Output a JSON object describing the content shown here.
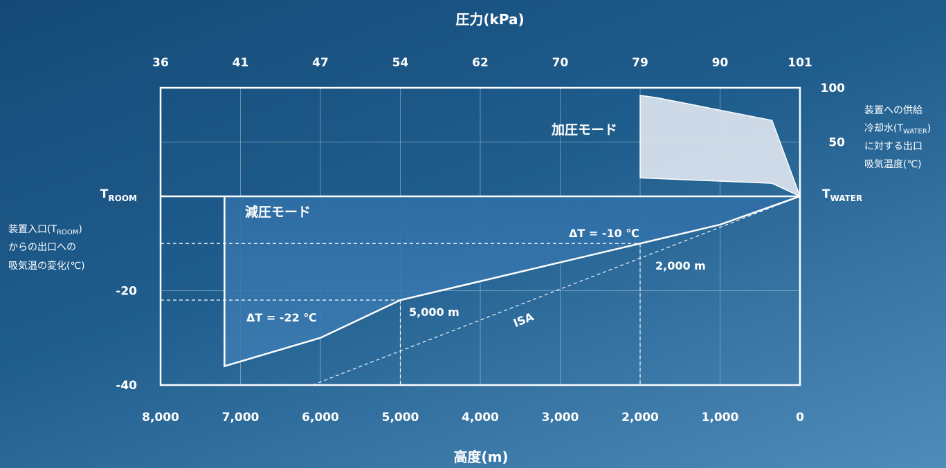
{
  "chart_data": {
    "type": "area",
    "title_top": "圧力(kPa)",
    "xlabel": "高度(m)",
    "top_axis_label": "圧力(kPa)",
    "x_reversed": true,
    "xlim": [
      0,
      8000
    ],
    "ylim": [
      -40,
      100
    ],
    "x_ticks": [
      {
        "value": 8000,
        "label": "8,000"
      },
      {
        "value": 7000,
        "label": "7,000"
      },
      {
        "value": 6000,
        "label": "6,000"
      },
      {
        "value": 5000,
        "label": "5,000"
      },
      {
        "value": 4000,
        "label": "4,000"
      },
      {
        "value": 3000,
        "label": "3,000"
      },
      {
        "value": 2000,
        "label": "2,000"
      },
      {
        "value": 1000,
        "label": "1,000"
      },
      {
        "value": 0,
        "label": "0"
      }
    ],
    "top_ticks": [
      {
        "value": 8000,
        "label": "36"
      },
      {
        "value": 7000,
        "label": "41"
      },
      {
        "value": 6000,
        "label": "47"
      },
      {
        "value": 5000,
        "label": "54"
      },
      {
        "value": 4000,
        "label": "62"
      },
      {
        "value": 3000,
        "label": "70"
      },
      {
        "value": 2000,
        "label": "79"
      },
      {
        "value": 1000,
        "label": "90"
      },
      {
        "value": 0,
        "label": "101"
      }
    ],
    "left_ticks": [
      {
        "value": 0,
        "label": "TROOM",
        "main": "T",
        "sub": "ROOM"
      },
      {
        "value": -20,
        "label": "-20"
      },
      {
        "value": -40,
        "label": "-40"
      }
    ],
    "right_ticks": [
      {
        "value": 100,
        "label": "100"
      },
      {
        "value": 50,
        "label": "50"
      },
      {
        "value": 0,
        "label": "TWATER",
        "main": "T",
        "sub": "WATER"
      }
    ],
    "left_axis_note": {
      "line1_pre": "装置入口(T",
      "line1_sub": "ROOM",
      "line1_post": ")",
      "line2": "からの出口への",
      "line3": "吸気温の変化(℃)"
    },
    "right_axis_note": {
      "line1": "装置への供給",
      "line2_pre": "冷却水(T",
      "line2_sub": "WATER",
      "line2_post": ")",
      "line3": "に対する出口",
      "line4": "吸気温度(℃)"
    },
    "series": [
      {
        "name": "減圧モード",
        "x": [
          7200,
          6000,
          5000,
          4000,
          3000,
          2000,
          1000,
          0
        ],
        "y": [
          -36,
          -30,
          -22,
          -18,
          -14,
          -10,
          -6,
          0
        ],
        "base": 0,
        "color": "#3b7ab0"
      },
      {
        "name": "加圧モード",
        "upper": {
          "x": [
            2000,
            1800,
            350,
            0
          ],
          "y": [
            93,
            91,
            70,
            0
          ]
        },
        "lower": {
          "x": [
            2000,
            350,
            0
          ],
          "y": [
            17,
            12,
            0
          ]
        },
        "color": "#dce4ef"
      },
      {
        "name": "ISA",
        "x": [
          6100,
          0
        ],
        "y": [
          -40,
          0
        ],
        "style": "dashed"
      }
    ],
    "annotations": [
      {
        "text": "ΔT = -10 ℃",
        "x": 2000,
        "y": -10
      },
      {
        "text": "ΔT = -22 ℃",
        "x": 5000,
        "y": -22
      },
      {
        "text": "2,000 m",
        "x": 2000,
        "y": -10
      },
      {
        "text": "5,000 m",
        "x": 5000,
        "y": -22
      },
      {
        "text": "ISA"
      }
    ],
    "grid": true
  }
}
